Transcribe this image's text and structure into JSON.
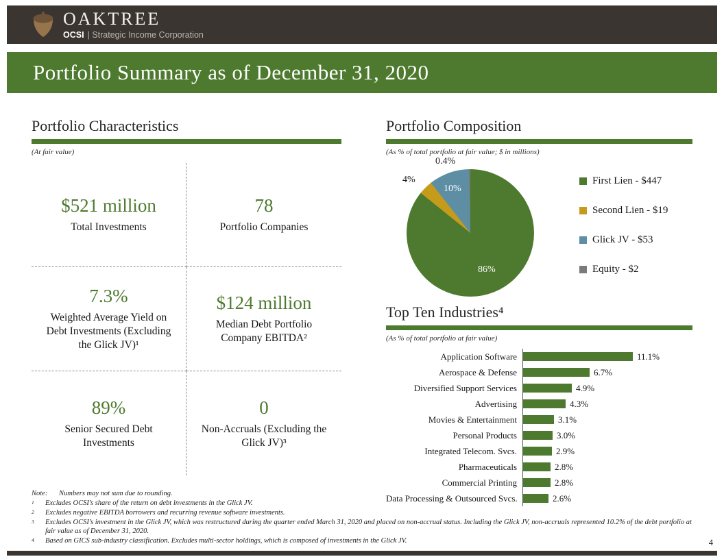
{
  "title": "Portfolio Summary as of December 31, 2020",
  "page_number": "4",
  "header": {
    "brand": "OAKTREE",
    "org_code": "OCSI",
    "org_rest": "| Strategic Income Corporation"
  },
  "colors": {
    "accent_green": "#4e7a2f",
    "gold": "#c59b1c",
    "steel_blue": "#5d8ea4",
    "equity_gray": "#7b7b7b",
    "header_dark": "#3a3531"
  },
  "characteristics": {
    "heading": "Portfolio Characteristics",
    "subheading": "(At fair value)",
    "stats": [
      {
        "value": "$521 million",
        "label": "Total Investments"
      },
      {
        "value": "78",
        "label": "Portfolio Companies"
      },
      {
        "value": "7.3%",
        "label": "Weighted Average Yield on Debt Investments (Excluding the Glick JV)¹"
      },
      {
        "value": "$124 million",
        "label": "Median Debt Portfolio Company EBITDA²"
      },
      {
        "value": "89%",
        "label": "Senior Secured Debt Investments"
      },
      {
        "value": "0",
        "label": "Non-Accruals (Excluding the Glick JV)³"
      }
    ]
  },
  "chart_data": [
    {
      "type": "pie",
      "title": "Portfolio Composition",
      "subtitle": "(As % of total portfolio at fair value; $ in millions)",
      "labels": [
        "First Lien",
        "Second Lien",
        "Glick JV",
        "Equity"
      ],
      "values": [
        85.8,
        3.6,
        10.2,
        0.4
      ],
      "slice_labels": [
        "86%",
        "4%",
        "10%",
        "0.4%"
      ],
      "amounts_millions": [
        447,
        19,
        53,
        2
      ],
      "colors": [
        "#4e7a2f",
        "#c59b1c",
        "#5d8ea4",
        "#7b7b7b"
      ],
      "legend_position": "right",
      "legend": [
        {
          "label": "First Lien - $447"
        },
        {
          "label": "Second Lien - $19"
        },
        {
          "label": "Glick JV - $53"
        },
        {
          "label": "Equity - $2"
        }
      ]
    },
    {
      "type": "bar",
      "orientation": "horizontal",
      "title": "Top Ten Industries⁴",
      "subtitle": "(As % of total portfolio at fair value)",
      "categories": [
        "Application Software",
        "Aerospace & Defense",
        "Diversified Support Services",
        "Advertising",
        "Movies & Entertainment",
        "Personal Products",
        "Integrated Telecom. Svcs.",
        "Pharmaceuticals",
        "Commercial Printing",
        "Data Processing & Outsourced Svcs."
      ],
      "values": [
        11.1,
        6.7,
        4.9,
        4.3,
        3.1,
        3.0,
        2.9,
        2.8,
        2.8,
        2.6
      ],
      "value_labels": [
        "11.1%",
        "6.7%",
        "4.9%",
        "4.3%",
        "3.1%",
        "3.0%",
        "2.9%",
        "2.8%",
        "2.8%",
        "2.6%"
      ],
      "bar_color": "#4e7a2f",
      "xlim": [
        0,
        11.1
      ]
    }
  ],
  "footnotes": [
    {
      "marker": "Note:",
      "text": "Numbers may not sum due to rounding."
    },
    {
      "marker": "1",
      "text": "Excludes OCSI’s share of the return on debt investments in the Glick JV."
    },
    {
      "marker": "2",
      "text": "Excludes negative EBITDA borrowers and recurring revenue software investments."
    },
    {
      "marker": "3",
      "text": "Excludes OCSI’s investment in the Glick JV, which was restructured during the quarter ended March 31, 2020 and placed on non-accrual status. Including the Glick JV, non-accruals represented 10.2% of the debt portfolio at fair value as of December 31, 2020."
    },
    {
      "marker": "4",
      "text": "Based on GICS sub-industry classification. Excludes multi-sector holdings, which is composed of investments in the Glick JV."
    }
  ]
}
